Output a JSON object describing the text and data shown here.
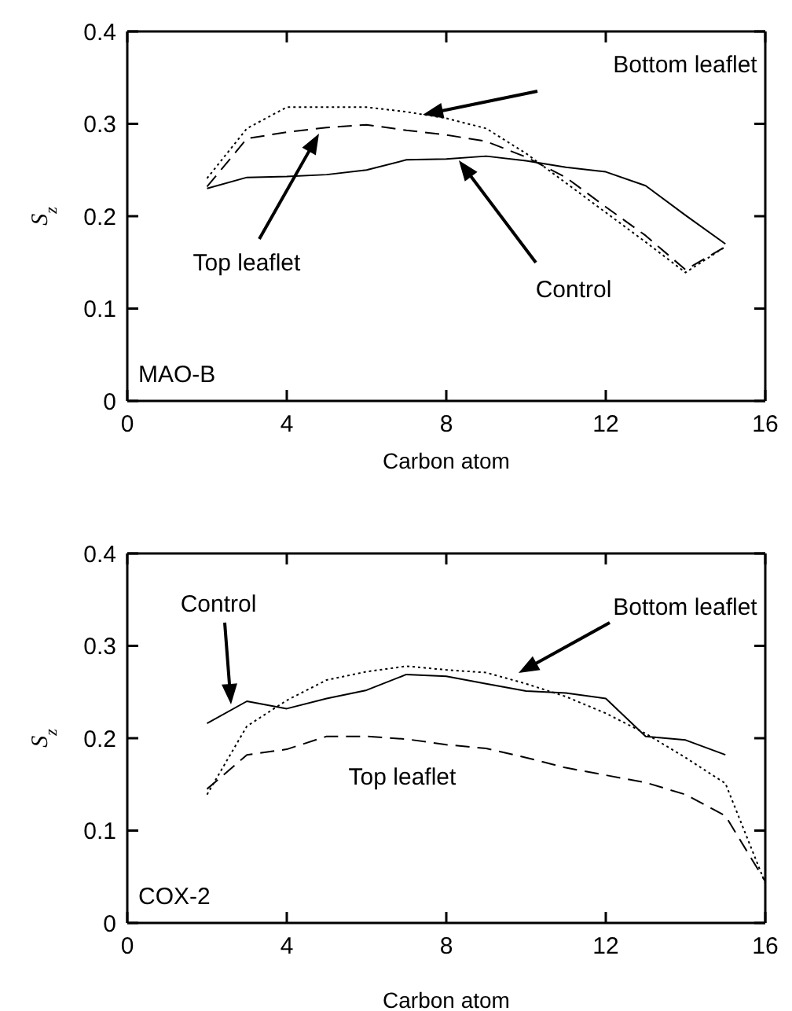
{
  "chart_data": [
    {
      "type": "line",
      "title": "MAO-B",
      "xlabel": "Carbon atom",
      "ylabel": "S$_{z}$",
      "x": [
        2,
        3,
        4,
        5,
        6,
        7,
        8,
        9,
        10,
        11,
        12,
        13,
        14,
        15
      ],
      "xlim": [
        0,
        16
      ],
      "xticks": [
        0,
        4,
        8,
        12,
        16
      ],
      "ylim": [
        0,
        0.4
      ],
      "yticks": [
        0,
        0.1,
        0.2,
        0.3,
        0.4
      ],
      "annotations": [
        "Control",
        "Bottom leaflet",
        "Top leaflet"
      ],
      "series": [
        {
          "color": "#000000",
          "line_style": "solid",
          "values": [
            0.23,
            0.242,
            0.243,
            0.245,
            0.25,
            0.261,
            0.262,
            0.265,
            0.26,
            0.253,
            0.248,
            0.233,
            0.201,
            0.17
          ]
        },
        {
          "color": "#000000",
          "line_style": "dotted",
          "values": [
            0.241,
            0.295,
            0.318,
            0.318,
            0.318,
            0.313,
            0.306,
            0.295,
            0.268,
            0.236,
            0.204,
            0.172,
            0.139,
            0.167
          ]
        },
        {
          "color": "#000000",
          "line_style": "dashed",
          "values": [
            0.232,
            0.284,
            0.291,
            0.296,
            0.299,
            0.293,
            0.288,
            0.281,
            0.264,
            0.242,
            0.21,
            0.179,
            0.142,
            0.167
          ]
        }
      ]
    },
    {
      "type": "line",
      "title": "COX-2",
      "xlabel": "Carbon atom",
      "ylabel": "S$_{z}$",
      "x": [
        2,
        3,
        4,
        5,
        6,
        7,
        8,
        9,
        10,
        11,
        12,
        13,
        14,
        15,
        16
      ],
      "xlim": [
        0,
        16
      ],
      "xticks": [
        0,
        4,
        8,
        12,
        16
      ],
      "ylim": [
        0,
        0.4
      ],
      "yticks": [
        0,
        0.1,
        0.2,
        0.3,
        0.4
      ],
      "annotations": [
        "Control",
        "Bottom leaflet"
      ],
      "series": [
        {
          "color": "#000000",
          "line_style": "solid",
          "values": [
            0.216,
            0.24,
            0.232,
            0.243,
            0.252,
            0.269,
            0.267,
            0.259,
            0.251,
            0.249,
            0.243,
            0.202,
            0.198,
            0.182,
            null
          ]
        },
        {
          "color": "#000000",
          "line_style": "dotted",
          "values": [
            0.139,
            0.213,
            0.241,
            0.263,
            0.272,
            0.278,
            0.274,
            0.271,
            0.259,
            0.245,
            0.227,
            0.205,
            0.179,
            0.151,
            0.043
          ]
        },
        {
          "name": "Top leaflet",
          "color": "#000000",
          "line_style": "dashed",
          "values": [
            0.145,
            0.182,
            0.188,
            0.202,
            0.202,
            0.199,
            0.193,
            0.189,
            0.179,
            0.168,
            0.16,
            0.152,
            0.139,
            0.116,
            0.045
          ]
        }
      ]
    }
  ]
}
